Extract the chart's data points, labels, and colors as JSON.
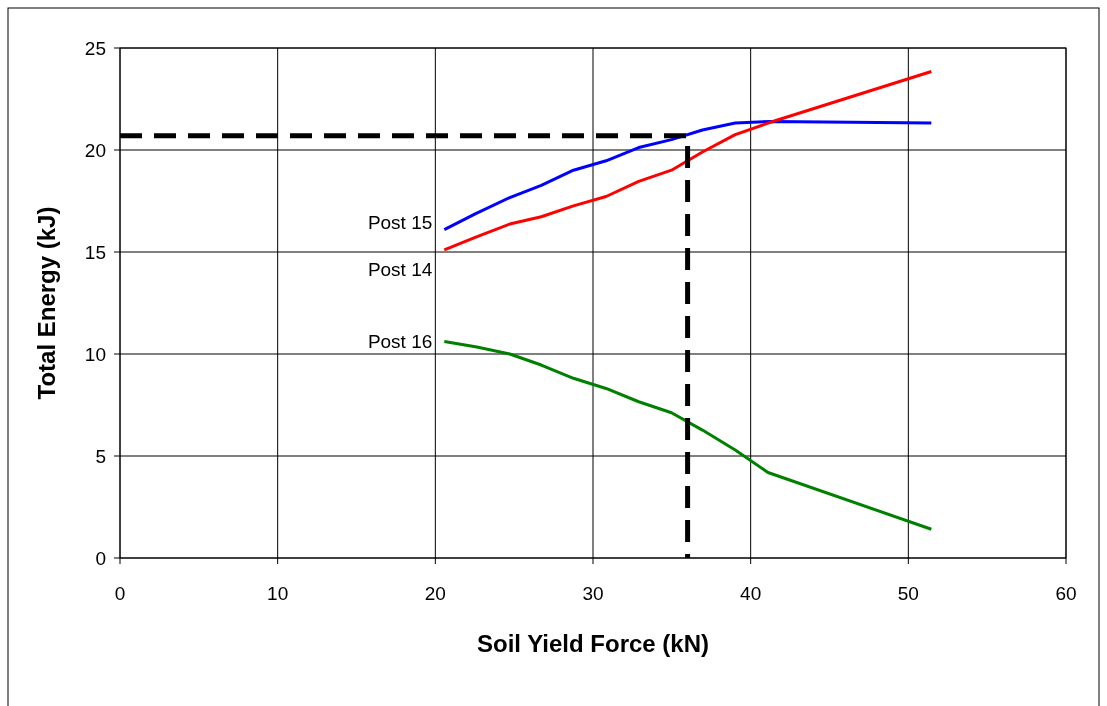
{
  "chart_data": {
    "type": "line",
    "xlabel": "Soil Yield Force (kN)",
    "ylabel": "Total Energy (kJ)",
    "xlim": [
      0,
      60
    ],
    "xticks": [
      0,
      10,
      20,
      30,
      40,
      50,
      60
    ],
    "ylim": [
      0,
      25
    ],
    "yticks": [
      0,
      5,
      10,
      15,
      20,
      25
    ],
    "grid": true,
    "legend": false,
    "line_style": "solid",
    "marker": "none",
    "series": [
      {
        "name": "Post 15",
        "color": "#0000ff",
        "x": [
          20.57,
          22.53,
          24.72,
          26.72,
          28.76,
          30.83,
          32.9,
          34.98,
          36.94,
          39.02,
          41.3,
          51.46
        ],
        "values": [
          16.1,
          16.87,
          17.67,
          18.27,
          19.01,
          19.47,
          20.12,
          20.51,
          20.98,
          21.32,
          21.4,
          21.32
        ]
      },
      {
        "name": "Post 14",
        "color": "#ff0000",
        "x": [
          20.57,
          22.53,
          24.72,
          26.72,
          28.76,
          30.83,
          32.9,
          34.98,
          36.94,
          39.02,
          41.3,
          51.46
        ],
        "values": [
          15.1,
          15.72,
          16.37,
          16.73,
          17.26,
          17.72,
          18.46,
          19.01,
          19.9,
          20.75,
          21.37,
          23.85
        ]
      },
      {
        "name": "Post 16",
        "color": "#008000",
        "x": [
          20.57,
          22.63,
          24.72,
          26.72,
          28.76,
          30.83,
          32.9,
          34.98,
          36.94,
          39.02,
          41.1,
          51.46
        ],
        "values": [
          10.61,
          10.34,
          10.0,
          9.46,
          8.81,
          8.31,
          7.66,
          7.12,
          6.27,
          5.29,
          4.19,
          1.41
        ]
      },
      {
        "color": "#000000",
        "line_style": "dashed",
        "x": [
          0,
          36,
          36
        ],
        "values": [
          20.7,
          20.7,
          0
        ]
      }
    ]
  }
}
